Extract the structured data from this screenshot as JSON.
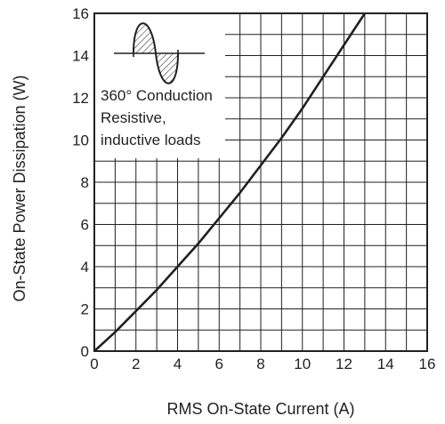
{
  "chart_data": {
    "type": "line",
    "title": "",
    "xlabel": "RMS On-State Current  (A)",
    "ylabel": "On-State Power Dissipation  (W)",
    "xlim": [
      0,
      16
    ],
    "ylim": [
      0,
      16
    ],
    "grid": true,
    "grid_minor_step": 1,
    "x_ticks": [
      "0",
      "2",
      "4",
      "6",
      "8",
      "10",
      "12",
      "14",
      "16"
    ],
    "y_ticks": [
      "0",
      "2",
      "4",
      "6",
      "8",
      "10",
      "12",
      "14",
      "16"
    ],
    "series": [
      {
        "x": [
          0,
          1,
          2,
          3,
          4,
          5,
          6,
          7,
          8,
          9,
          10,
          11,
          12,
          13
        ],
        "y": [
          0,
          0.9,
          1.9,
          2.9,
          4.0,
          5.1,
          6.3,
          7.5,
          8.8,
          10.1,
          11.5,
          13.0,
          14.5,
          16.0
        ],
        "color": "#231f20"
      }
    ],
    "annotation": {
      "lines": [
        "360° Conduction",
        "Resistive,",
        "inductive loads"
      ],
      "icon": "sine-wave-conduction-icon"
    }
  }
}
